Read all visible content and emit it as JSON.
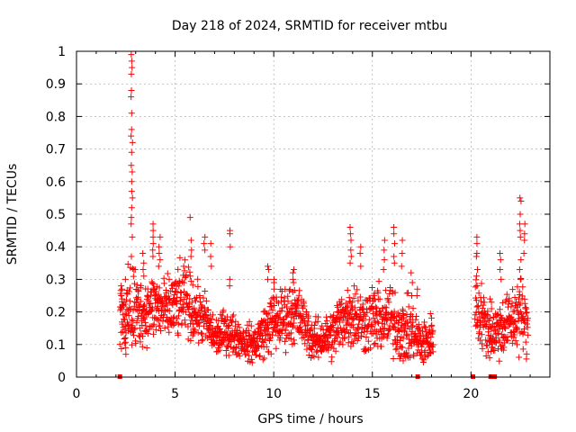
{
  "chart_data": {
    "type": "scatter",
    "title": "Day 218 of 2024, SRMTID for receiver mtbu",
    "xlabel": "GPS time / hours",
    "ylabel": "SRMTID / TECUs",
    "xlim": [
      0,
      24
    ],
    "ylim": [
      0,
      1
    ],
    "xticks": [
      0,
      5,
      10,
      15,
      20
    ],
    "yticks": [
      0,
      0.1,
      0.2,
      0.3,
      0.4,
      0.5,
      0.6,
      0.7,
      0.8,
      0.9,
      1
    ],
    "xtick_labels": [
      "0",
      "5",
      "10",
      "15",
      "20"
    ],
    "ytick_labels": [
      "0",
      "0.1",
      "0.2",
      "0.3",
      "0.4",
      "0.5",
      "0.6",
      "0.7",
      "0.8",
      "0.9",
      "1"
    ],
    "grid": true,
    "marker": "+",
    "colors": {
      "series": "#ff0000",
      "grid": "#a0a0a0",
      "axis": "#000000"
    },
    "envelope": {
      "hours": [
        2.2,
        2.5,
        2.7,
        2.9,
        3.1,
        3.5,
        4.0,
        4.5,
        5.0,
        5.5,
        6.0,
        6.5,
        7.0,
        7.5,
        8.0,
        8.5,
        9.0,
        9.5,
        10.0,
        10.5,
        11.0,
        11.5,
        12.0,
        12.5,
        13.0,
        13.5,
        14.0,
        14.5,
        15.0,
        15.5,
        16.0,
        16.5,
        17.0,
        17.5,
        18.0,
        18.1,
        20.2,
        20.6,
        21.0,
        21.5,
        22.0,
        22.5,
        22.9
      ],
      "median": [
        0.19,
        0.18,
        0.2,
        0.22,
        0.2,
        0.2,
        0.22,
        0.2,
        0.22,
        0.24,
        0.2,
        0.18,
        0.12,
        0.14,
        0.13,
        0.11,
        0.1,
        0.14,
        0.17,
        0.18,
        0.2,
        0.17,
        0.11,
        0.12,
        0.13,
        0.18,
        0.2,
        0.17,
        0.18,
        0.17,
        0.18,
        0.14,
        0.14,
        0.1,
        0.12,
        0.15,
        0.22,
        0.18,
        0.13,
        0.15,
        0.17,
        0.2,
        0.14
      ],
      "spread": [
        0.05,
        0.06,
        0.1,
        0.12,
        0.07,
        0.06,
        0.07,
        0.06,
        0.07,
        0.07,
        0.06,
        0.05,
        0.04,
        0.04,
        0.04,
        0.03,
        0.04,
        0.05,
        0.06,
        0.06,
        0.06,
        0.05,
        0.04,
        0.04,
        0.05,
        0.06,
        0.07,
        0.06,
        0.07,
        0.06,
        0.07,
        0.06,
        0.06,
        0.04,
        0.05,
        0.05,
        0.07,
        0.06,
        0.05,
        0.06,
        0.06,
        0.08,
        0.05
      ]
    },
    "spikes": [
      {
        "x": 2.3,
        "ys": [
          0.28,
          0.27,
          0.25,
          0.24,
          0.22
        ]
      },
      {
        "x": 2.5,
        "ys": [
          0.3,
          0.07,
          0.09,
          0.12
        ]
      },
      {
        "x": 2.8,
        "ys": [
          0.99,
          0.97,
          0.95,
          0.93,
          0.88,
          0.86,
          0.81,
          0.76,
          0.74,
          0.72,
          0.69,
          0.65,
          0.63,
          0.6,
          0.57,
          0.55,
          0.52,
          0.49,
          0.47,
          0.43,
          0.37
        ]
      },
      {
        "x": 3.4,
        "ys": [
          0.38,
          0.35,
          0.33,
          0.31
        ]
      },
      {
        "x": 3.9,
        "ys": [
          0.47,
          0.45,
          0.43,
          0.41,
          0.39,
          0.37
        ]
      },
      {
        "x": 4.2,
        "ys": [
          0.43,
          0.4,
          0.38,
          0.36,
          0.34
        ]
      },
      {
        "x": 5.8,
        "ys": [
          0.49,
          0.42,
          0.39,
          0.37
        ]
      },
      {
        "x": 6.5,
        "ys": [
          0.43,
          0.41,
          0.39
        ]
      },
      {
        "x": 6.8,
        "ys": [
          0.41,
          0.37,
          0.34
        ]
      },
      {
        "x": 7.8,
        "ys": [
          0.45,
          0.44,
          0.4,
          0.3,
          0.28
        ]
      },
      {
        "x": 9.7,
        "ys": [
          0.34,
          0.33,
          0.3
        ]
      },
      {
        "x": 10.0,
        "ys": [
          0.3,
          0.29,
          0.27
        ]
      },
      {
        "x": 11.0,
        "ys": [
          0.33,
          0.32,
          0.3,
          0.29
        ]
      },
      {
        "x": 13.2,
        "ys": [
          0.22,
          0.2
        ]
      },
      {
        "x": 13.9,
        "ys": [
          0.46,
          0.44,
          0.42,
          0.39,
          0.37,
          0.35
        ]
      },
      {
        "x": 14.4,
        "ys": [
          0.4,
          0.38,
          0.34
        ]
      },
      {
        "x": 15.6,
        "ys": [
          0.42,
          0.39,
          0.36,
          0.33
        ]
      },
      {
        "x": 16.1,
        "ys": [
          0.46,
          0.44,
          0.41,
          0.37,
          0.35
        ]
      },
      {
        "x": 16.5,
        "ys": [
          0.42,
          0.38,
          0.34
        ]
      },
      {
        "x": 16.6,
        "ys": [
          0.07,
          0.05
        ]
      },
      {
        "x": 17.0,
        "ys": [
          0.32,
          0.29,
          0.25
        ]
      },
      {
        "x": 17.3,
        "ys": [
          0.27,
          0.25
        ]
      },
      {
        "x": 20.3,
        "ys": [
          0.43,
          0.41,
          0.38,
          0.37,
          0.33,
          0.31,
          0.28
        ]
      },
      {
        "x": 21.0,
        "ys": [
          0.23,
          0.24,
          0.21
        ]
      },
      {
        "x": 21.5,
        "ys": [
          0.38,
          0.36,
          0.33,
          0.3
        ]
      },
      {
        "x": 22.5,
        "ys": [
          0.55,
          0.54,
          0.5,
          0.47,
          0.45,
          0.43,
          0.36,
          0.33,
          0.3
        ]
      },
      {
        "x": 22.7,
        "ys": [
          0.47,
          0.44,
          0.42,
          0.38
        ]
      }
    ],
    "zero_marks": [
      2.2,
      17.3,
      20.1,
      21.0,
      21.2
    ]
  }
}
